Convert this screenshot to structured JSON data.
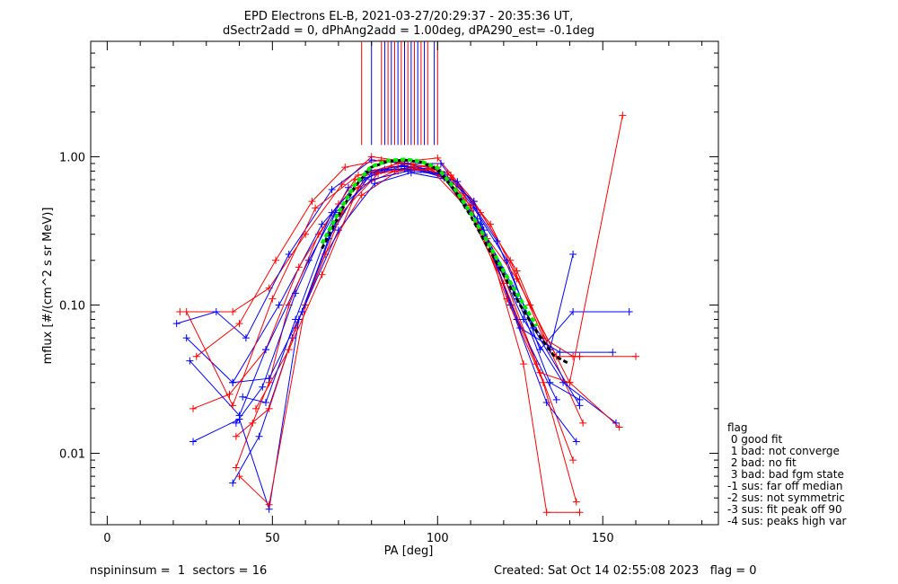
{
  "chart_data": {
    "type": "line",
    "title": "EPD Electrons EL-B, 2021-03-27/20:29:37 - 20:35:36 UT,",
    "subtitle": "dSectr2add = 0, dPhAng2add = 1.00deg, dPA290_est=  -0.1deg",
    "xlabel": "PA [deg]",
    "ylabel": "mflux [#/(cm^2 s sr MeV)]",
    "xlim": [
      -5,
      185
    ],
    "ylim": [
      0.0033,
      6.0
    ],
    "yscale": "log",
    "x_ticks": [
      0,
      50,
      100,
      150
    ],
    "y_ticks": [
      {
        "value": 0.01,
        "label": "0.01"
      },
      {
        "value": 0.1,
        "label": "0.10"
      },
      {
        "value": 1.0,
        "label": "1.00"
      }
    ],
    "marker_lines_pa": [
      77,
      80,
      83,
      84,
      85,
      86,
      87,
      88,
      89,
      90,
      91,
      92,
      93,
      94,
      95,
      96,
      97,
      99,
      100
    ],
    "colors": {
      "a": "#ff0000",
      "b": "#0000ff",
      "median": "#000000",
      "fit": "#00ee00"
    },
    "series": [
      {
        "color": "#ff0000",
        "pa": [
          22,
          38,
          49,
          60,
          71,
          80,
          90,
          100,
          111,
          122,
          132,
          141,
          143
        ],
        "flux": [
          0.09,
          0.09,
          0.13,
          0.3,
          0.65,
          1.0,
          0.93,
          0.98,
          0.5,
          0.2,
          0.06,
          0.045,
          0.045
        ]
      },
      {
        "color": "#0000ff",
        "pa": [
          21,
          33,
          42,
          55,
          68,
          80,
          90,
          101,
          111,
          121,
          131,
          141,
          158
        ],
        "flux": [
          0.075,
          0.09,
          0.06,
          0.22,
          0.6,
          0.95,
          0.9,
          0.9,
          0.45,
          0.2,
          0.05,
          0.09,
          0.09
        ]
      },
      {
        "color": "#ff0000",
        "pa": [
          27,
          40,
          51,
          62,
          72,
          83,
          92,
          103,
          113,
          124,
          134,
          144
        ],
        "flux": [
          0.045,
          0.075,
          0.2,
          0.5,
          0.85,
          0.95,
          0.9,
          0.78,
          0.42,
          0.17,
          0.05,
          0.016
        ]
      },
      {
        "color": "#0000ff",
        "pa": [
          24,
          38,
          52,
          65,
          79,
          90,
          102,
          114,
          126,
          138,
          154
        ],
        "flux": [
          0.06,
          0.03,
          0.1,
          0.35,
          0.8,
          0.87,
          0.72,
          0.3,
          0.08,
          0.03,
          0.016
        ]
      },
      {
        "color": "#ff0000",
        "pa": [
          26,
          37,
          48,
          58,
          70,
          81,
          92,
          104,
          116,
          128,
          140,
          155
        ],
        "flux": [
          0.02,
          0.025,
          0.05,
          0.18,
          0.48,
          0.78,
          0.85,
          0.75,
          0.35,
          0.1,
          0.03,
          0.015
        ]
      },
      {
        "color": "#0000ff",
        "pa": [
          25,
          40,
          48,
          61,
          73,
          84,
          95,
          106,
          118,
          129,
          143
        ],
        "flux": [
          0.042,
          0.018,
          0.05,
          0.2,
          0.62,
          0.82,
          0.82,
          0.68,
          0.27,
          0.07,
          0.021
        ]
      },
      {
        "color": "#ff0000",
        "pa": [
          39,
          44,
          49,
          55,
          64,
          75,
          86,
          97,
          108,
          119,
          130,
          141
        ],
        "flux": [
          0.008,
          0.016,
          0.03,
          0.1,
          0.3,
          0.7,
          0.86,
          0.86,
          0.55,
          0.18,
          0.04,
          0.009
        ]
      },
      {
        "color": "#0000ff",
        "pa": [
          38,
          46,
          56,
          67,
          78,
          89,
          100,
          111,
          122,
          133,
          142
        ],
        "flux": [
          0.0063,
          0.013,
          0.06,
          0.28,
          0.72,
          0.86,
          0.82,
          0.5,
          0.1,
          0.022,
          0.012
        ]
      },
      {
        "color": "#ff0000",
        "pa": [
          39,
          49,
          57,
          66,
          77,
          88,
          99,
          110,
          121,
          132,
          142
        ],
        "flux": [
          0.013,
          0.02,
          0.07,
          0.22,
          0.55,
          0.8,
          0.83,
          0.47,
          0.11,
          0.03,
          0.0047
        ]
      },
      {
        "color": "#0000ff",
        "pa": [
          26,
          40,
          49,
          58,
          69,
          80,
          91,
          102,
          113,
          124,
          136
        ],
        "flux": [
          0.012,
          0.017,
          0.0042,
          0.08,
          0.35,
          0.78,
          0.9,
          0.74,
          0.35,
          0.08,
          0.023
        ]
      },
      {
        "color": "#ff0000",
        "pa": [
          40,
          49,
          60,
          71,
          82,
          93,
          104,
          115,
          126,
          133,
          143
        ],
        "flux": [
          0.007,
          0.0045,
          0.1,
          0.42,
          0.77,
          0.84,
          0.72,
          0.28,
          0.04,
          0.004,
          0.004
        ]
      },
      {
        "color": "#0000ff",
        "pa": [
          39,
          47,
          57,
          68,
          79,
          90,
          101,
          112,
          123,
          134,
          143
        ],
        "flux": [
          0.016,
          0.028,
          0.12,
          0.42,
          0.8,
          0.83,
          0.77,
          0.38,
          0.13,
          0.03,
          0.023
        ]
      },
      {
        "color": "#ff0000",
        "pa": [
          24,
          38,
          50,
          63,
          76,
          88,
          100,
          112,
          124,
          136,
          160
        ],
        "flux": [
          0.09,
          0.021,
          0.11,
          0.45,
          0.75,
          0.9,
          0.85,
          0.35,
          0.15,
          0.045,
          0.045
        ]
      },
      {
        "color": "#0000ff",
        "pa": [
          38,
          49,
          59,
          70,
          81,
          92,
          103,
          114,
          125,
          137,
          153
        ],
        "flux": [
          0.03,
          0.032,
          0.09,
          0.32,
          0.66,
          0.78,
          0.7,
          0.32,
          0.07,
          0.048,
          0.048
        ]
      },
      {
        "color": "#ff0000",
        "pa": [
          45,
          55,
          65,
          76,
          87,
          98,
          109,
          120,
          131,
          140,
          156
        ],
        "flux": [
          0.02,
          0.05,
          0.16,
          0.62,
          0.8,
          0.82,
          0.45,
          0.14,
          0.035,
          0.03,
          1.9
        ]
      },
      {
        "color": "#0000ff",
        "pa": [
          41,
          48,
          57,
          69,
          80,
          91,
          102,
          113,
          124,
          134,
          141
        ],
        "flux": [
          0.024,
          0.022,
          0.08,
          0.42,
          0.7,
          0.8,
          0.76,
          0.35,
          0.11,
          0.05,
          0.22
        ]
      }
    ],
    "median_curve": {
      "color": "#000000",
      "pa": [
        65,
        70,
        75,
        80,
        85,
        90,
        95,
        100,
        105,
        110,
        115,
        120,
        125,
        130,
        135,
        140
      ],
      "flux": [
        0.24,
        0.4,
        0.63,
        0.85,
        0.93,
        0.95,
        0.92,
        0.82,
        0.6,
        0.4,
        0.25,
        0.16,
        0.1,
        0.066,
        0.046,
        0.04
      ]
    },
    "fit_curve": {
      "color": "#00ee00",
      "pa": [
        65,
        70,
        75,
        80,
        85,
        90,
        95,
        100,
        105,
        110,
        115,
        120,
        125,
        130
      ],
      "flux": [
        0.26,
        0.42,
        0.65,
        0.86,
        0.94,
        0.96,
        0.93,
        0.84,
        0.62,
        0.42,
        0.27,
        0.17,
        0.11,
        0.072
      ]
    }
  },
  "footer": {
    "left": "nspininsum =  1  sectors = 16",
    "right": "Created: Sat Oct 14 02:55:08 2023   flag = 0"
  },
  "legend": [
    "flag",
    " 0 good fit",
    " 1 bad: not converge",
    " 2 bad: no fit",
    " 3 bad: bad fgm state",
    "-1 sus: far off median",
    "-2 sus: not symmetric",
    "-3 sus: fit peak off 90",
    "-4 sus: peaks high var"
  ]
}
